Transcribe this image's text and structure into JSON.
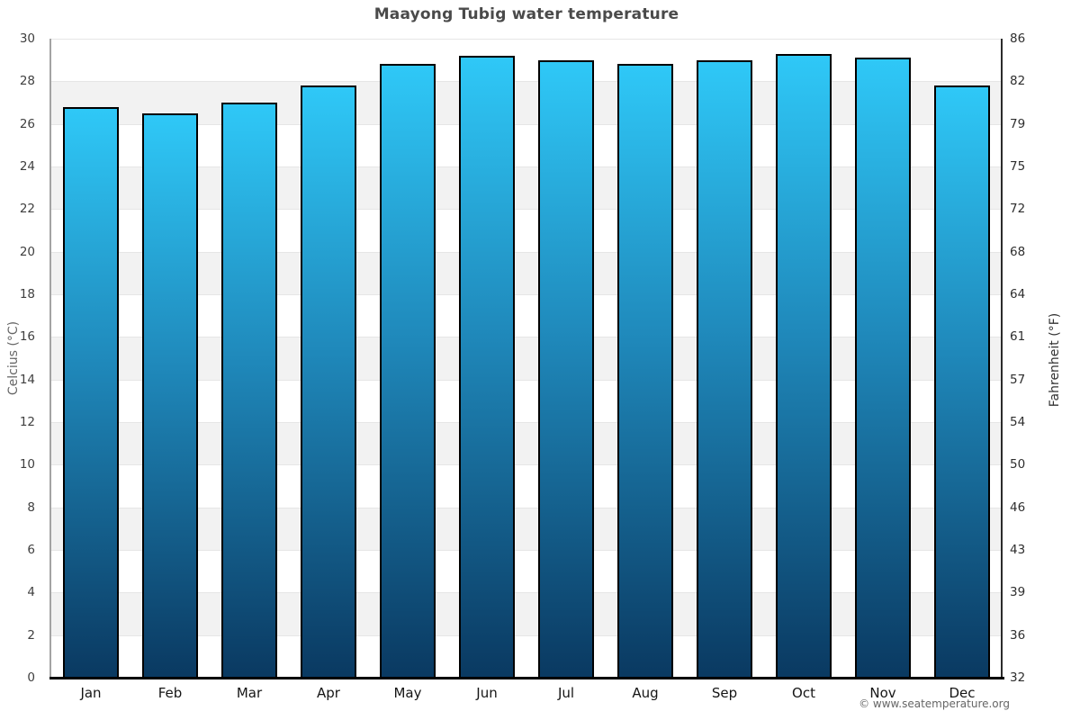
{
  "header": {
    "title": "Maayong Tubig water temperature"
  },
  "footer": {
    "credit": "© www.seatemperature.org"
  },
  "chart_data": {
    "type": "bar",
    "title": "Maayong Tubig water temperature",
    "categories": [
      "Jan",
      "Feb",
      "Mar",
      "Apr",
      "May",
      "Jun",
      "Jul",
      "Aug",
      "Sep",
      "Oct",
      "Nov",
      "Dec"
    ],
    "series": [
      {
        "name": "Water temperature",
        "unit": "°C",
        "values": [
          26.8,
          26.5,
          27.0,
          27.8,
          28.8,
          29.2,
          29.0,
          28.8,
          29.0,
          29.3,
          29.1,
          27.8
        ]
      }
    ],
    "yaxis_left": {
      "label": "Celcius (°C)",
      "min": 0,
      "max": 30,
      "tick_step": 2,
      "ticks": [
        "30",
        "28",
        "26",
        "24",
        "22",
        "20",
        "18",
        "16",
        "14",
        "12",
        "10",
        "8",
        "6",
        "4",
        "2",
        "0"
      ]
    },
    "yaxis_right": {
      "label": "Fahrenheit (°F)",
      "ticks": [
        "86",
        "82",
        "79",
        "75",
        "72",
        "68",
        "64",
        "61",
        "57",
        "54",
        "50",
        "46",
        "43",
        "39",
        "36",
        "32"
      ]
    },
    "legend": "none",
    "grid": {
      "bands": true,
      "band_colors": [
        "#ffffff",
        "#f2f2f2"
      ],
      "gridline_color": "#e6e6e6"
    },
    "bar_style": {
      "gradient_top": "#2fc8f7",
      "gradient_mid": "#1f88ba",
      "gradient_bottom": "#0a3961",
      "border_color": "#000000"
    }
  }
}
